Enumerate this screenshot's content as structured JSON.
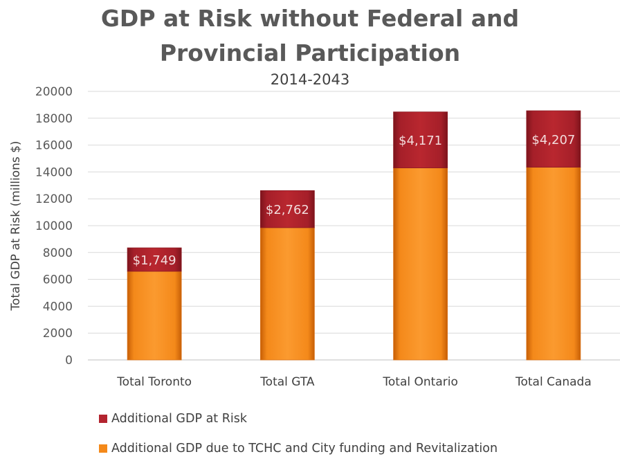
{
  "chart_data": {
    "type": "bar",
    "stacked": true,
    "title": "GDP at Risk without Federal and Provincial Participation",
    "title_lines": [
      "GDP at Risk without Federal and",
      "Provincial Participation"
    ],
    "subtitle": "2014-2043",
    "xlabel": "",
    "ylabel": "Total GDP at Risk (millions $)",
    "ylim": [
      0,
      20000
    ],
    "yticks": [
      0,
      2000,
      4000,
      6000,
      8000,
      10000,
      12000,
      14000,
      16000,
      18000,
      20000
    ],
    "grid": true,
    "legend_position": "bottom-left",
    "categories": [
      "Total Toronto",
      "Total GTA",
      "Total Ontario",
      "Total Canada"
    ],
    "series": [
      {
        "name": "Additional GDP due to TCHC and City funding and Revitalization",
        "values": [
          6600,
          9850,
          14300,
          14350
        ],
        "color": "#f4891a"
      },
      {
        "name": "Additional GDP at Risk",
        "values": [
          1749,
          2762,
          4171,
          4207
        ],
        "color": "#b3242f",
        "labels": [
          "$1,749",
          "$2,762",
          "$4,171",
          "$4,207"
        ]
      }
    ],
    "legend_order": [
      1,
      0
    ]
  }
}
